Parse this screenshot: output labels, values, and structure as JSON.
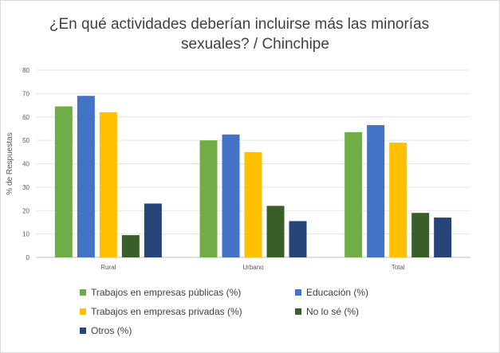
{
  "chart_data": {
    "type": "bar",
    "title": "¿En qué actividades deberían incluirse más las minorías sexuales? / Chinchipe",
    "title_lines": [
      "¿En qué actividades deberían incluirse más las minorías",
      "sexuales? / Chinchipe"
    ],
    "xlabel": "",
    "ylabel": "% de Respuestas",
    "ylim": [
      0,
      80
    ],
    "yticks": [
      "0",
      "10",
      "20",
      "30",
      "40",
      "50",
      "60",
      "70",
      "80"
    ],
    "grid": true,
    "legend_position": "bottom",
    "categories": [
      "Rural",
      "Urbano",
      "Total"
    ],
    "series": [
      {
        "name": "Trabajos en empresas públicas (%)",
        "color": "#70ad47",
        "values": [
          64.5,
          50,
          53.5
        ]
      },
      {
        "name": "Educación (%)",
        "color": "#4472c4",
        "values": [
          69,
          52.5,
          56.5
        ]
      },
      {
        "name": "Trabajos en empresas privadas (%)",
        "color": "#ffc000",
        "values": [
          62,
          45,
          49
        ]
      },
      {
        "name": "No lo sé (%)",
        "color": "#3a5e27",
        "values": [
          9.5,
          22,
          19
        ]
      },
      {
        "name": "Otros (%)",
        "color": "#264478",
        "values": [
          23,
          15.5,
          17
        ]
      }
    ]
  }
}
